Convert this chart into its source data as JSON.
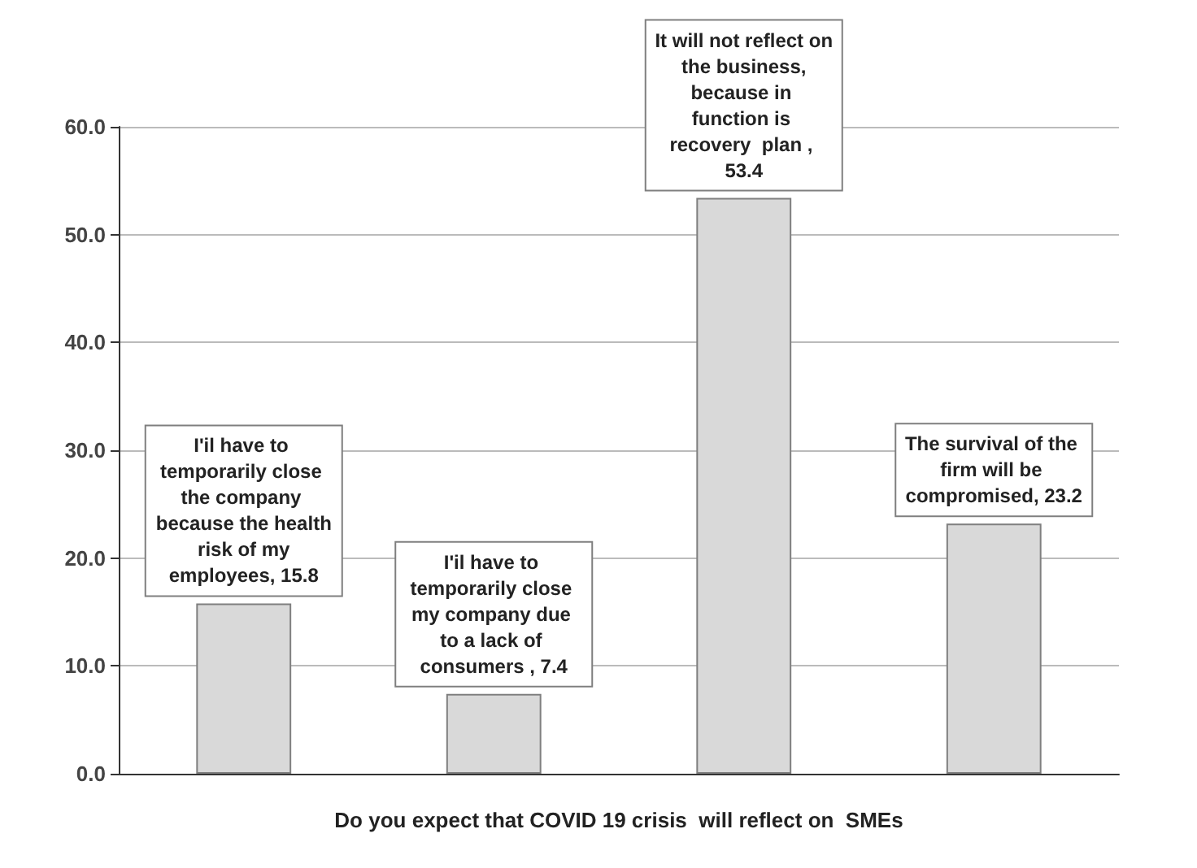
{
  "chart_data": {
    "type": "bar",
    "xlabel": "Do you expect that COVID 19 crisis  will reflect on  SMEs",
    "categories": [
      null,
      null,
      null,
      null
    ],
    "values": [
      15.8,
      7.4,
      53.4,
      23.2
    ],
    "color": "#d9d9d9",
    "value_labels": [
      "I'il have to temporarily close the company because the health risk of my employees, 15.8",
      "I'il have to temporarily close my company due to a lack of consumers , 7.4",
      "It will not reflect on the business, because in function is recovery  plan , 53.4",
      "The survival of the firm will be compromised, 23.2"
    ],
    "ylim": [
      0,
      60
    ],
    "yticks": [
      {
        "value": 0,
        "label": "0.0"
      },
      {
        "value": 10,
        "label": "10.0"
      },
      {
        "value": 20,
        "label": "20.0"
      },
      {
        "value": 30,
        "label": "30.0"
      },
      {
        "value": 40,
        "label": "40.0"
      },
      {
        "value": 50,
        "label": "50.0"
      },
      {
        "value": 60,
        "label": "60.0"
      }
    ],
    "grid": "y"
  }
}
